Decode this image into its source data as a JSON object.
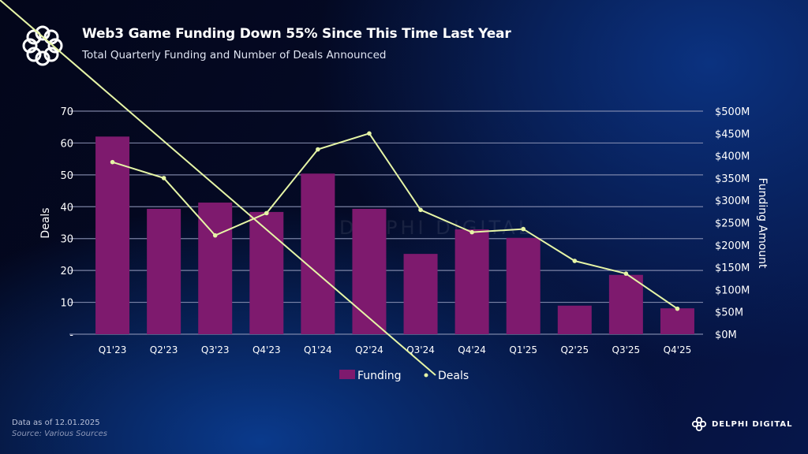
{
  "header": {
    "title": "Web3 Game Funding Down 55% Since This Time Last Year",
    "subtitle": "Total Quarterly Funding and Number of Deals Announced"
  },
  "footer": {
    "data_as_of": "Data as of 12.01.2025",
    "source": "Source: Various Sources",
    "brand": "DELPHI DIGITAL",
    "watermark": "DELPHI DIGITAL"
  },
  "colors": {
    "bar": "#7e1a6e",
    "line": "#e6f5a6",
    "grid": "#8f96b8"
  },
  "chart_data": {
    "type": "bar+line",
    "categories": [
      "Q1'23",
      "Q2'23",
      "Q3'23",
      "Q4'23",
      "Q1'24",
      "Q2'24",
      "Q3'24",
      "Q4'24",
      "Q1'25",
      "Q2'25",
      "Q3'25",
      "Q4'25"
    ],
    "series": [
      {
        "name": "Funding",
        "type": "bar",
        "axis": "right",
        "values": [
          443,
          281,
          295,
          274,
          360,
          281,
          180,
          235,
          216,
          64,
          133,
          58
        ]
      },
      {
        "name": "Deals",
        "type": "line",
        "axis": "left",
        "values": [
          54,
          49,
          31,
          38,
          58,
          63,
          39,
          32,
          33,
          23,
          19,
          8
        ]
      }
    ],
    "ylabel_left": "Deals",
    "ylabel_right": "Funding Amount",
    "ylim_left": [
      0,
      70
    ],
    "ylim_right": [
      0,
      500
    ],
    "yticks_left": [
      "-",
      "10",
      "20",
      "30",
      "40",
      "50",
      "60",
      "70"
    ],
    "yticks_right": [
      "$0M",
      "$50M",
      "$100M",
      "$150M",
      "$200M",
      "$250M",
      "$300M",
      "$350M",
      "$400M",
      "$450M",
      "$500M"
    ],
    "grid": true,
    "legend": "bottom"
  }
}
